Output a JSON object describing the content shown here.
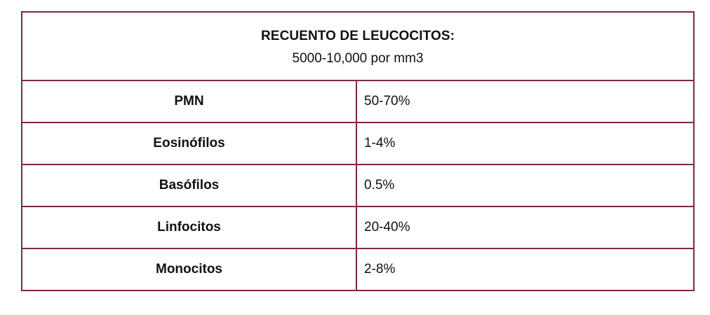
{
  "table": {
    "title": "RECUENTO DE LEUCOCITOS:",
    "range": "5000-10,000 por mm3",
    "rows": [
      {
        "label": "PMN",
        "value": "50-70%"
      },
      {
        "label": "Eosinófilos",
        "value": "1-4%"
      },
      {
        "label": "Basófilos",
        "value": "0.5%"
      },
      {
        "label": "Linfocitos",
        "value": "20-40%"
      },
      {
        "label": "Monocitos",
        "value": "2-8%"
      }
    ],
    "border_color": "#7a2a45"
  }
}
